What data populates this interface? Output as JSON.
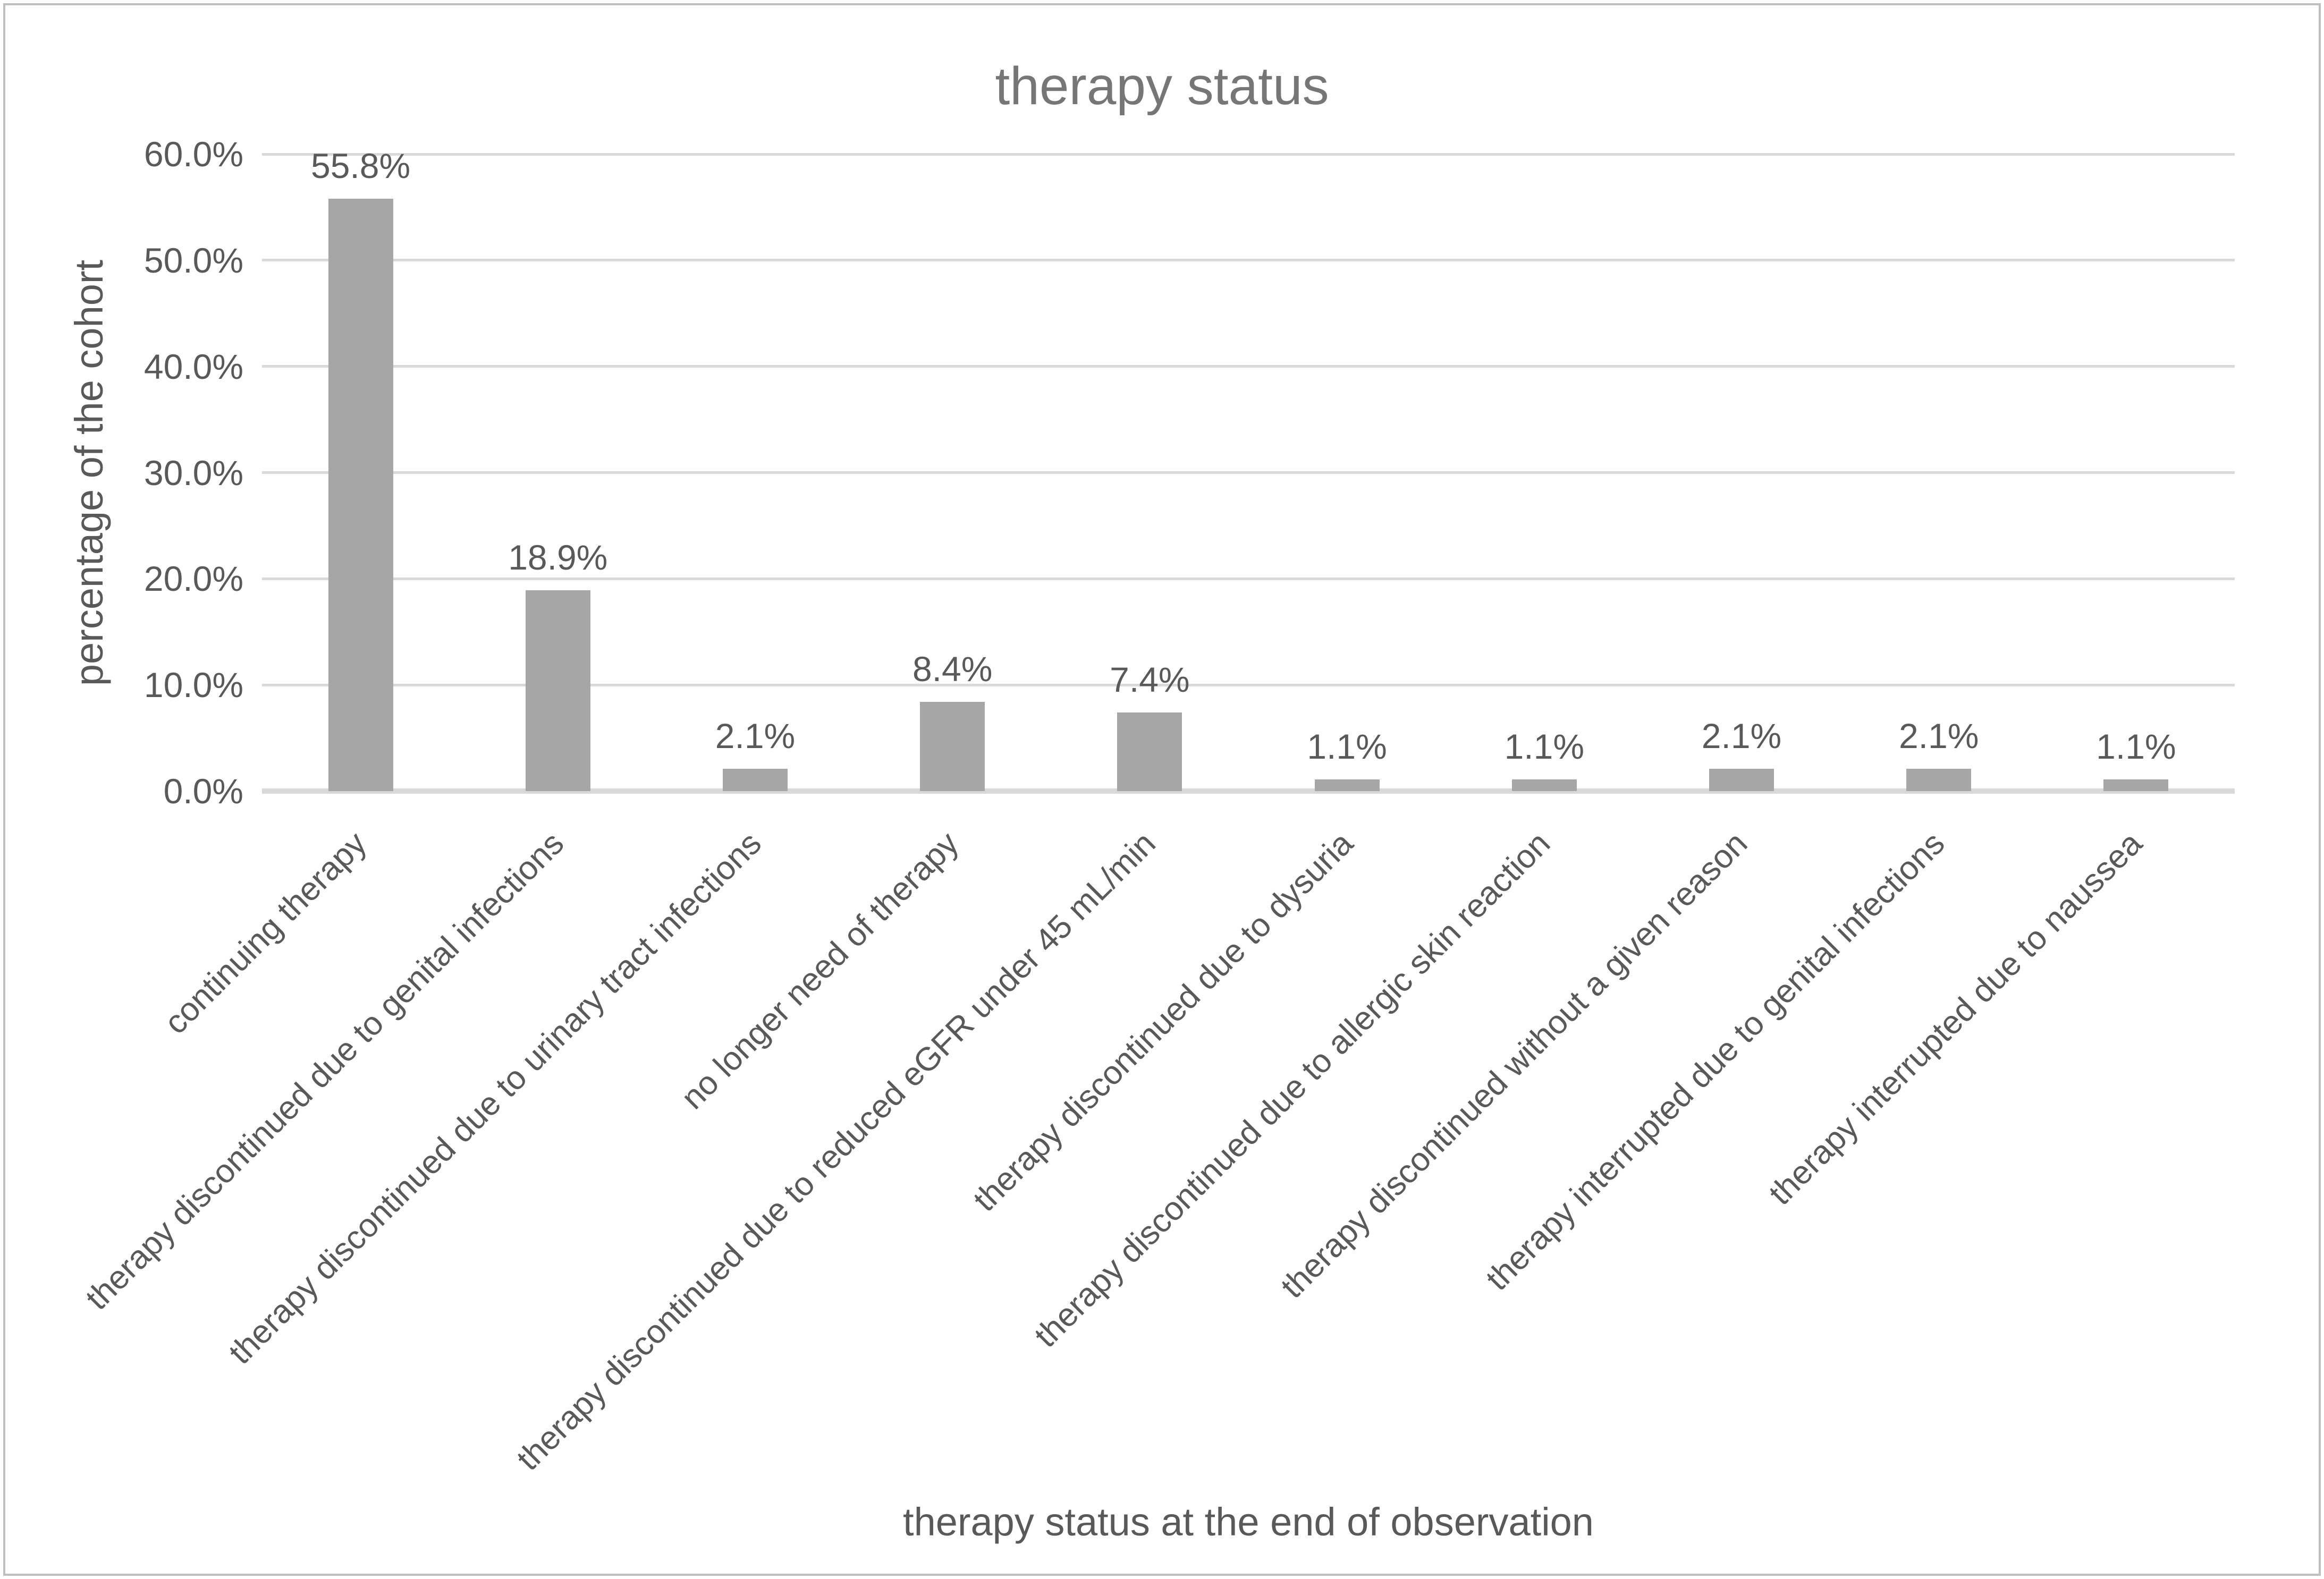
{
  "chart_data": {
    "type": "bar",
    "title": "therapy status",
    "xlabel": "therapy status at the end of observation",
    "ylabel": "percentage of the cohort",
    "ylim": [
      0,
      60
    ],
    "ytick_labels": [
      "0.0%",
      "10.0%",
      "20.0%",
      "30.0%",
      "40.0%",
      "50.0%",
      "60.0%"
    ],
    "grid": true,
    "legend_position": "none",
    "bar_color": "#a6a6a6",
    "gridline_color": "#d9d9d9",
    "axis_line_color": "#d9d9d9",
    "text_color": "#595959",
    "title_color": "#767676",
    "categories": [
      "continuing therapy",
      "therapy discontinued due to genital infections",
      "therapy discontinued due to urinary tract infections",
      "no longer need of therapy",
      "therapy discontinued due to reduced eGFR under 45 mL/min",
      "therapy discontinued due to dysuria",
      "therapy discontinued due to allergic skin reaction",
      "therapy discontinued without a given reason",
      "therapy interrupted due to genital infections",
      "therapy interrupted due to naussea"
    ],
    "values": [
      55.8,
      18.9,
      2.1,
      8.4,
      7.4,
      1.1,
      1.1,
      2.1,
      2.1,
      1.1
    ],
    "data_labels": [
      "55.8%",
      "18.9%",
      "2.1%",
      "8.4%",
      "7.4%",
      "1.1%",
      "1.1%",
      "2.1%",
      "2.1%",
      "1.1%"
    ]
  }
}
